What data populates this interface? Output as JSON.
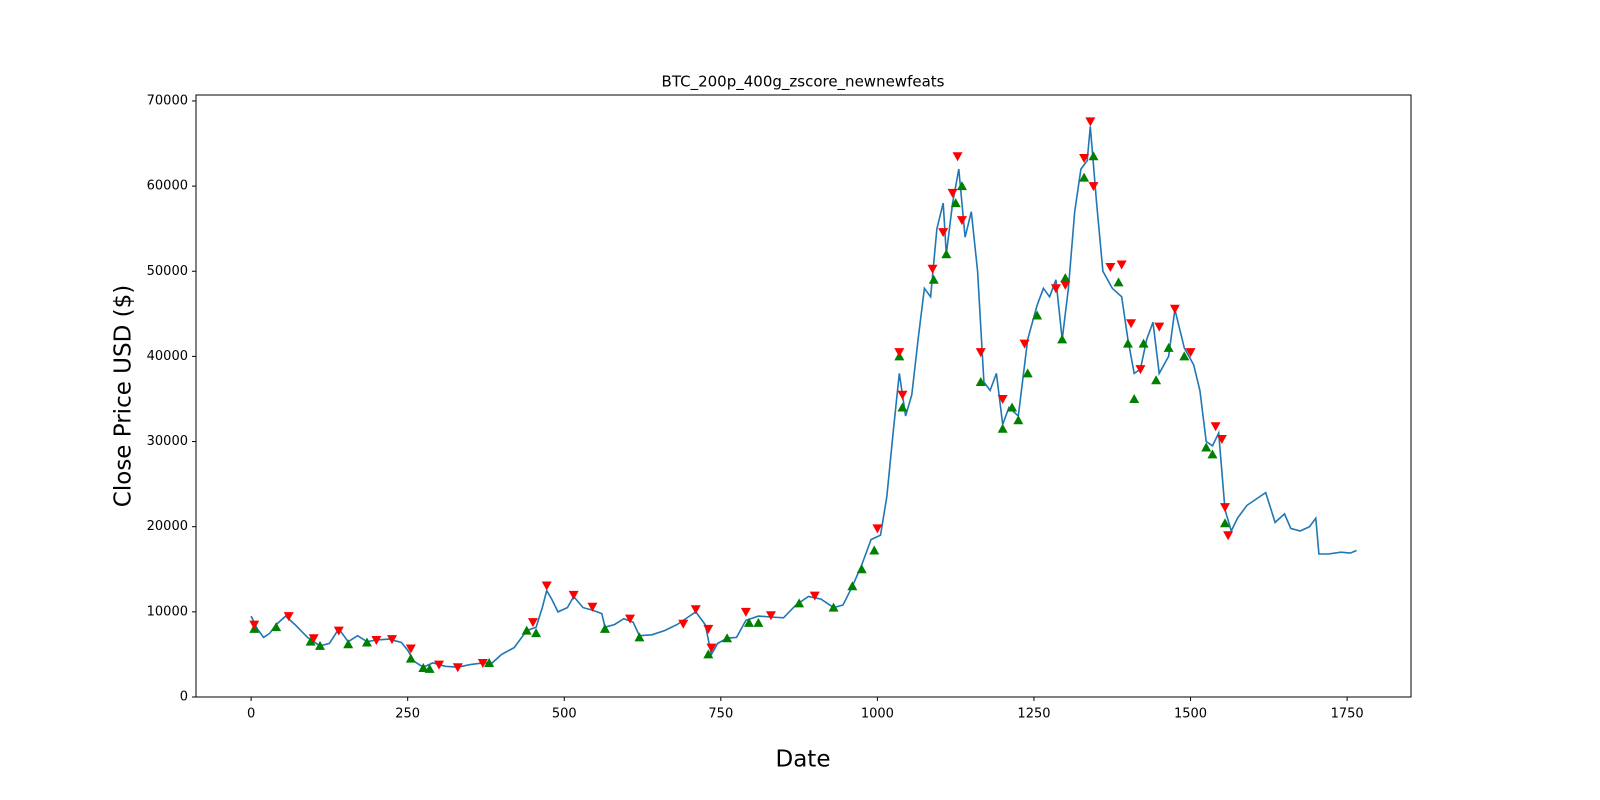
{
  "chart_data": {
    "type": "line",
    "title": "BTC_200p_400g_zscore_newnewfeats",
    "xlabel": "Date",
    "ylabel": "Close Price USD ($)",
    "xlim": [
      -88,
      1852
    ],
    "ylim": [
      0,
      70700
    ],
    "xticks": [
      0,
      250,
      500,
      750,
      1000,
      1250,
      1500,
      1750
    ],
    "yticks": [
      0,
      10000,
      20000,
      30000,
      40000,
      50000,
      60000,
      70000
    ],
    "grid": false,
    "series": [
      {
        "style": "line",
        "color": "#1f77b4",
        "x": [
          0,
          10,
          20,
          30,
          40,
          55,
          70,
          90,
          100,
          110,
          125,
          140,
          155,
          170,
          185,
          200,
          220,
          240,
          250,
          260,
          275,
          290,
          310,
          330,
          350,
          370,
          385,
          400,
          420,
          440,
          455,
          465,
          472,
          480,
          490,
          505,
          515,
          530,
          545,
          560,
          565,
          580,
          595,
          610,
          620,
          640,
          660,
          680,
          700,
          710,
          725,
          735,
          745,
          760,
          775,
          790,
          810,
          830,
          850,
          870,
          890,
          910,
          930,
          945,
          960,
          975,
          990,
          1005,
          1015,
          1025,
          1035,
          1045,
          1055,
          1065,
          1075,
          1085,
          1095,
          1105,
          1110,
          1120,
          1130,
          1140,
          1150,
          1160,
          1170,
          1180,
          1190,
          1200,
          1210,
          1225,
          1240,
          1255,
          1265,
          1275,
          1285,
          1295,
          1305,
          1315,
          1325,
          1335,
          1340,
          1350,
          1360,
          1375,
          1390,
          1400,
          1410,
          1420,
          1430,
          1440,
          1450,
          1465,
          1475,
          1490,
          1505,
          1515,
          1525,
          1535,
          1545,
          1555,
          1565,
          1575,
          1590,
          1610,
          1620,
          1635,
          1650,
          1660,
          1675,
          1690,
          1700,
          1705,
          1720,
          1740,
          1755,
          1765
        ],
        "values": [
          9500,
          8000,
          7000,
          7500,
          8500,
          9500,
          8500,
          7000,
          6500,
          6000,
          6300,
          8000,
          6500,
          7200,
          6500,
          6700,
          6800,
          6400,
          5500,
          4200,
          3500,
          4000,
          3600,
          3500,
          3800,
          4000,
          4000,
          5000,
          5800,
          7800,
          8200,
          10500,
          12500,
          11500,
          10000,
          10500,
          11800,
          10500,
          10200,
          9800,
          8200,
          8500,
          9200,
          8800,
          7200,
          7300,
          7800,
          8500,
          9500,
          10000,
          8500,
          5000,
          6300,
          6900,
          7000,
          9000,
          9500,
          9400,
          9300,
          10800,
          11800,
          11500,
          10500,
          10800,
          13000,
          15500,
          18500,
          19000,
          23500,
          31000,
          38000,
          33000,
          35500,
          42000,
          48000,
          47000,
          55000,
          58000,
          52000,
          58000,
          62000,
          54000,
          57000,
          50000,
          37000,
          36000,
          38000,
          32000,
          34000,
          33000,
          42000,
          46000,
          48000,
          47000,
          49000,
          42000,
          48000,
          57000,
          62000,
          63000,
          67000,
          58000,
          50000,
          48000,
          47000,
          42000,
          38000,
          38500,
          42000,
          44000,
          38000,
          40000,
          45500,
          41000,
          39000,
          36000,
          30000,
          29500,
          31000,
          22000,
          19500,
          21000,
          22500,
          23500,
          24000,
          20500,
          21500,
          19800,
          19500,
          20000,
          21000,
          16800,
          16800,
          17000,
          16900,
          17200
        ]
      },
      {
        "style": "marker-up",
        "color": "#008000",
        "x": [
          5,
          40,
          95,
          110,
          155,
          185,
          255,
          275,
          285,
          380,
          440,
          455,
          565,
          620,
          730,
          760,
          795,
          810,
          875,
          930,
          960,
          975,
          995,
          1035,
          1040,
          1090,
          1110,
          1125,
          1135,
          1165,
          1200,
          1215,
          1225,
          1240,
          1255,
          1295,
          1300,
          1330,
          1345,
          1385,
          1400,
          1410,
          1425,
          1445,
          1465,
          1490,
          1525,
          1535,
          1555
        ],
        "values": [
          8000,
          8200,
          6500,
          6000,
          6200,
          6400,
          4500,
          3400,
          3300,
          4000,
          7800,
          7500,
          8000,
          7000,
          5000,
          6900,
          8700,
          8700,
          11000,
          10500,
          13000,
          15000,
          17200,
          40000,
          34000,
          49000,
          52000,
          58000,
          60000,
          37000,
          31500,
          34000,
          32500,
          38000,
          44800,
          42000,
          49200,
          61000,
          63500,
          48700,
          41500,
          35000,
          41500,
          37200,
          41000,
          40000,
          29300,
          28500,
          20400
        ]
      },
      {
        "style": "marker-down",
        "color": "#ff0000",
        "x": [
          5,
          60,
          100,
          140,
          200,
          225,
          255,
          300,
          330,
          370,
          450,
          472,
          515,
          545,
          605,
          690,
          710,
          730,
          735,
          790,
          830,
          900,
          1000,
          1035,
          1040,
          1088,
          1105,
          1120,
          1128,
          1135,
          1165,
          1200,
          1235,
          1285,
          1300,
          1330,
          1340,
          1345,
          1372,
          1390,
          1405,
          1420,
          1450,
          1475,
          1500,
          1540,
          1550,
          1555,
          1560
        ],
        "values": [
          8500,
          9500,
          6900,
          7800,
          6700,
          6800,
          5700,
          3800,
          3500,
          4000,
          8800,
          13100,
          12000,
          10600,
          9200,
          8600,
          10300,
          8000,
          5800,
          10000,
          9600,
          11900,
          19800,
          40500,
          35500,
          50300,
          54600,
          59200,
          63500,
          56000,
          40500,
          35000,
          41500,
          48000,
          48400,
          63300,
          67600,
          60000,
          50500,
          50800,
          43900,
          38500,
          43500,
          45600,
          40500,
          31800,
          30300,
          22300,
          19000
        ]
      }
    ]
  }
}
